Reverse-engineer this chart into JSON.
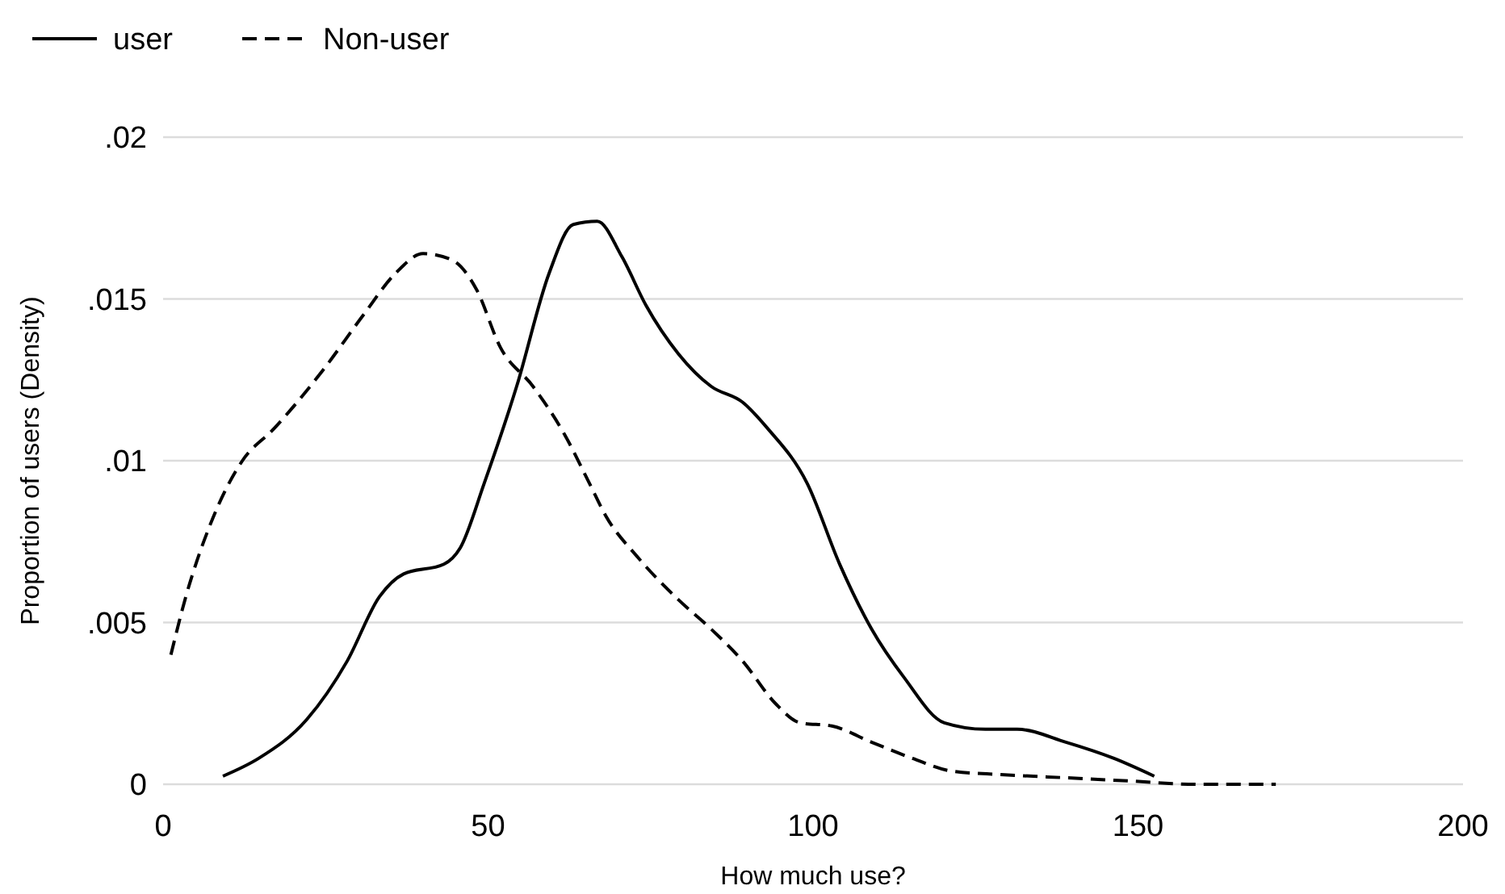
{
  "chart_data": {
    "type": "line",
    "xlabel": "How much use?",
    "ylabel": "Proportion of users (Density)",
    "xlim": [
      0,
      200
    ],
    "xticks": [
      0,
      50,
      100,
      150,
      200
    ],
    "ylim": [
      0,
      0.02
    ],
    "yticks": [
      {
        "value": 0,
        "label": "0"
      },
      {
        "value": 0.005,
        "label": ".005"
      },
      {
        "value": 0.01,
        "label": ".01"
      },
      {
        "value": 0.015,
        "label": ".015"
      },
      {
        "value": 0.02,
        "label": ".02"
      }
    ],
    "grid": "y",
    "legend": "top left",
    "marker": "none",
    "series": [
      {
        "name": "user",
        "color": "#000000",
        "line_style": "solid",
        "x": [
          9.2,
          14.7,
          22.1,
          28.3,
          33.3,
          37,
          43.2,
          45.7,
          49.4,
          54.4,
          59.4,
          63.1,
          66.8,
          70.6,
          74.3,
          79.3,
          84.3,
          89.2,
          93,
          99.1,
          104.1,
          109,
          114,
          120.2,
          126.5,
          131.4,
          138.9,
          146.3,
          152.5
        ],
        "values": [
          0.00025,
          0.0008,
          0.002,
          0.0038,
          0.0058,
          0.0065,
          0.0068,
          0.0073,
          0.0093,
          0.0123,
          0.0158,
          0.0173,
          0.0174,
          0.0163,
          0.0148,
          0.0133,
          0.0123,
          0.0118,
          0.011,
          0.0093,
          0.0068,
          0.0048,
          0.0033,
          0.0019,
          0.0017,
          0.0017,
          0.0013,
          0.0008,
          0.00025
        ]
      },
      {
        "name": "Non-user",
        "color": "#000000",
        "line_style": "dashed",
        "x": [
          1.2,
          3.5,
          7.2,
          12.2,
          17.1,
          24.6,
          30.8,
          35.8,
          40,
          44.5,
          48.2,
          51.9,
          56.9,
          61.8,
          65.6,
          68.1,
          73.1,
          79.3,
          84.3,
          89.2,
          94.2,
          98,
          102.9,
          109,
          115.3,
          121.5,
          128.9,
          138.9,
          148.8,
          158.8,
          171.2
        ],
        "values": [
          0.004,
          0.0058,
          0.008,
          0.01,
          0.011,
          0.0128,
          0.0145,
          0.0158,
          0.0164,
          0.0162,
          0.0153,
          0.0135,
          0.0123,
          0.0108,
          0.0093,
          0.0083,
          0.007,
          0.0057,
          0.0048,
          0.0038,
          0.0025,
          0.0019,
          0.0018,
          0.0013,
          0.0008,
          0.0004,
          0.0003,
          0.0002,
          0.0001,
          0,
          0
        ]
      }
    ]
  }
}
